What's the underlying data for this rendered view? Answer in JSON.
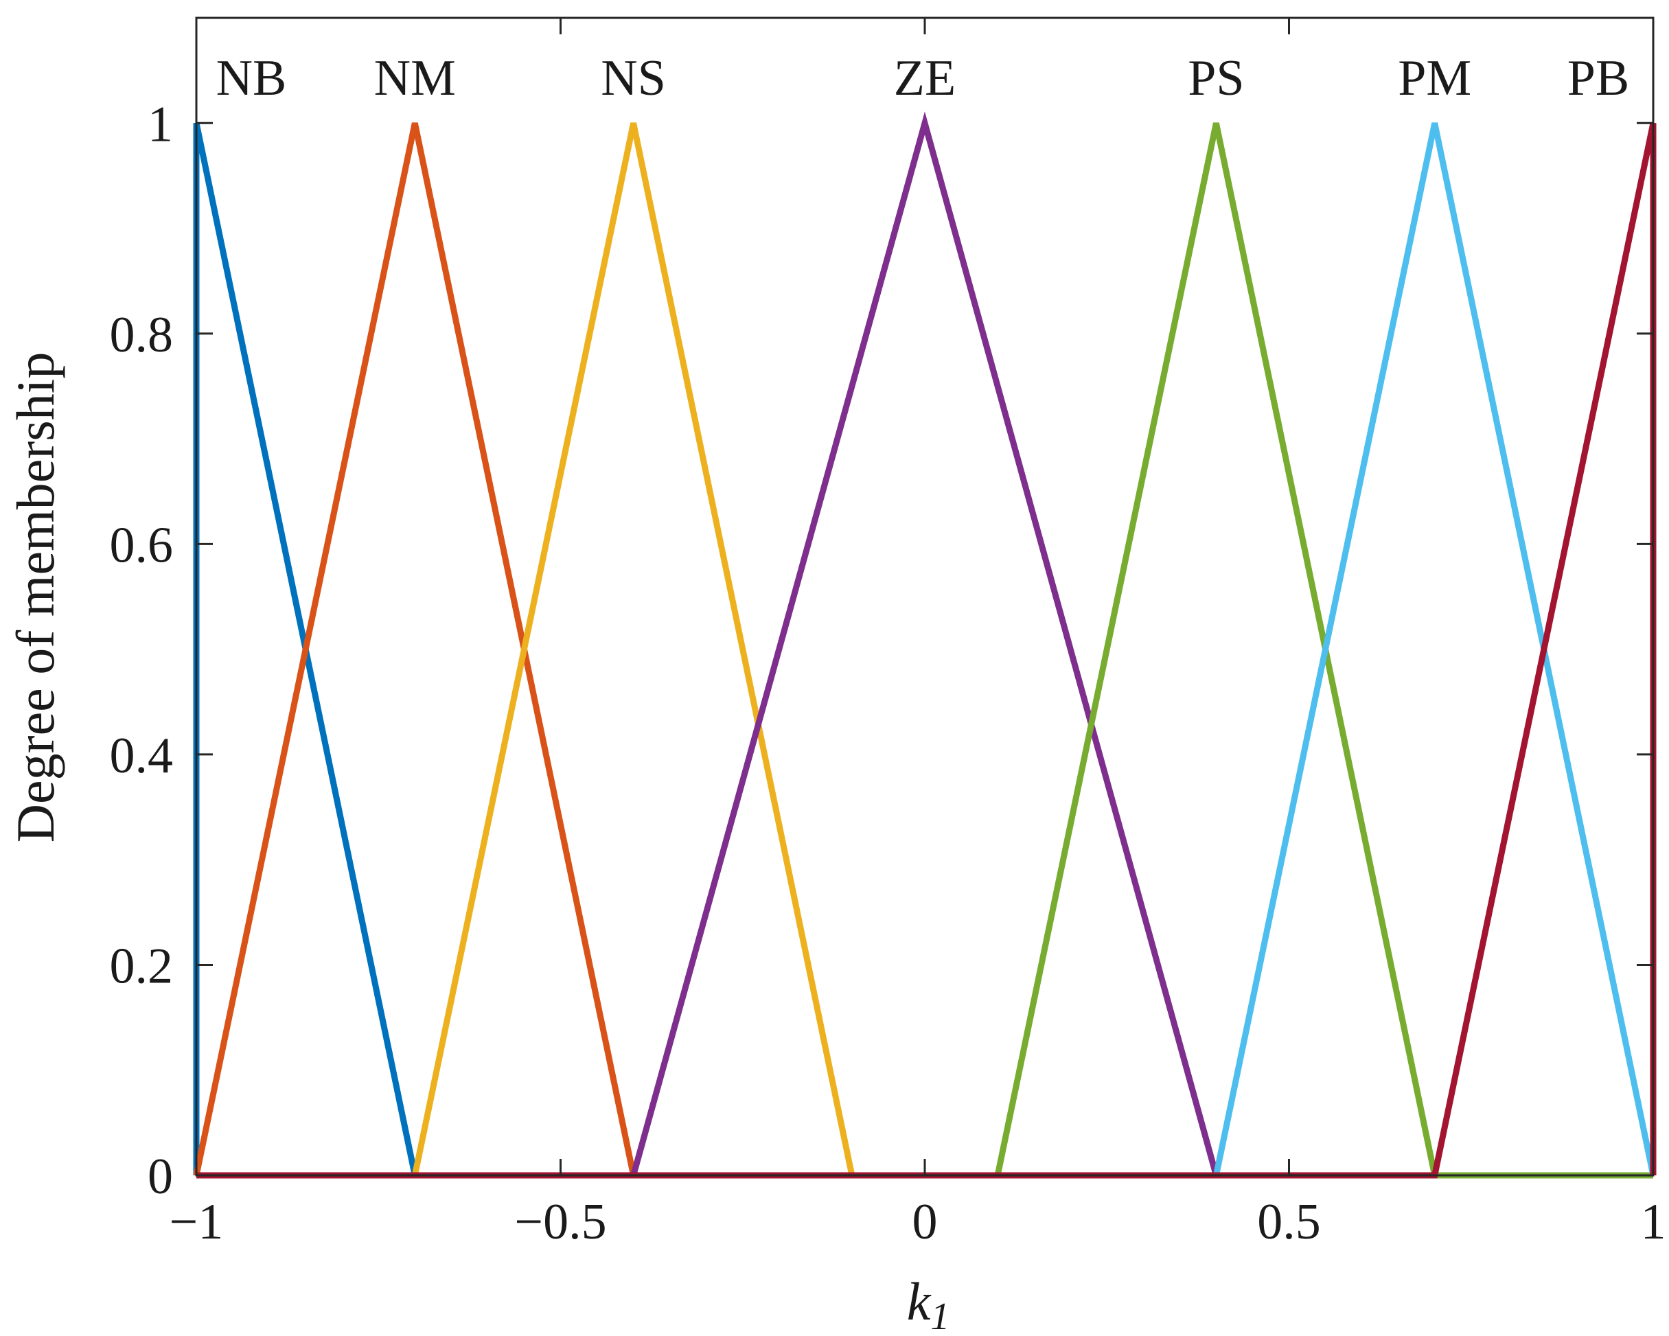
{
  "chart_data": {
    "type": "line",
    "title": "",
    "xlabel": "k",
    "xlabel_subscript": "1",
    "ylabel": "Degree of membership",
    "xlim": [
      -1,
      1
    ],
    "ylim": [
      0,
      1.1
    ],
    "xticks": [
      -1,
      -0.5,
      0,
      0.5,
      1
    ],
    "xtick_labels": [
      "−1",
      "−0.5",
      "0",
      "0.5",
      "1"
    ],
    "yticks": [
      0,
      0.2,
      0.4,
      0.6,
      0.8,
      1
    ],
    "ytick_labels": [
      "0",
      "0.2",
      "0.4",
      "0.6",
      "0.8",
      "1"
    ],
    "grid": false,
    "series": [
      {
        "name": "NB",
        "color": "#0072BD",
        "x": [
          -1,
          -1,
          -0.7,
          1
        ],
        "y": [
          0,
          1,
          0,
          0
        ]
      },
      {
        "name": "NM",
        "color": "#D95319",
        "x": [
          -1,
          -0.7,
          -0.4,
          1
        ],
        "y": [
          0,
          1,
          0,
          0
        ]
      },
      {
        "name": "NS",
        "color": "#EDB120",
        "x": [
          -1,
          -0.7,
          -0.4,
          -0.1,
          1
        ],
        "y": [
          0,
          0,
          1,
          0,
          0
        ]
      },
      {
        "name": "ZE",
        "color": "#7E2F8E",
        "x": [
          -1,
          -0.4,
          0,
          0.4,
          1
        ],
        "y": [
          0,
          0,
          1,
          0,
          0
        ]
      },
      {
        "name": "PS",
        "color": "#77AC30",
        "x": [
          -1,
          0.1,
          0.4,
          0.7,
          1
        ],
        "y": [
          0,
          0,
          1,
          0,
          0
        ]
      },
      {
        "name": "PM",
        "color": "#4DBEEE",
        "x": [
          -1,
          0.4,
          0.7,
          1
        ],
        "y": [
          0,
          0,
          1,
          0
        ]
      },
      {
        "name": "PB",
        "color": "#A2142F",
        "x": [
          -1,
          0.7,
          1,
          1
        ],
        "y": [
          0,
          0,
          1,
          0
        ]
      }
    ]
  }
}
